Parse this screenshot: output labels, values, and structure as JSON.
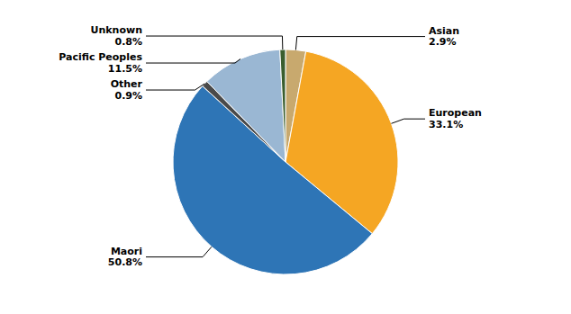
{
  "chart_data": {
    "type": "pie",
    "categories": [
      "Asian",
      "European",
      "Maori",
      "Other",
      "Pacific Peoples",
      "Unknown"
    ],
    "values": [
      2.9,
      33.1,
      50.8,
      0.9,
      11.5,
      0.8
    ],
    "colors": [
      "#c8a96e",
      "#f5a623",
      "#2e75b6",
      "#4a4a4a",
      "#9ab7d3",
      "#3a5e2e"
    ],
    "value_labels": [
      "2.9%",
      "33.1%",
      "50.8%",
      "0.9%",
      "11.5%",
      "0.8%"
    ],
    "data_labels": true
  }
}
